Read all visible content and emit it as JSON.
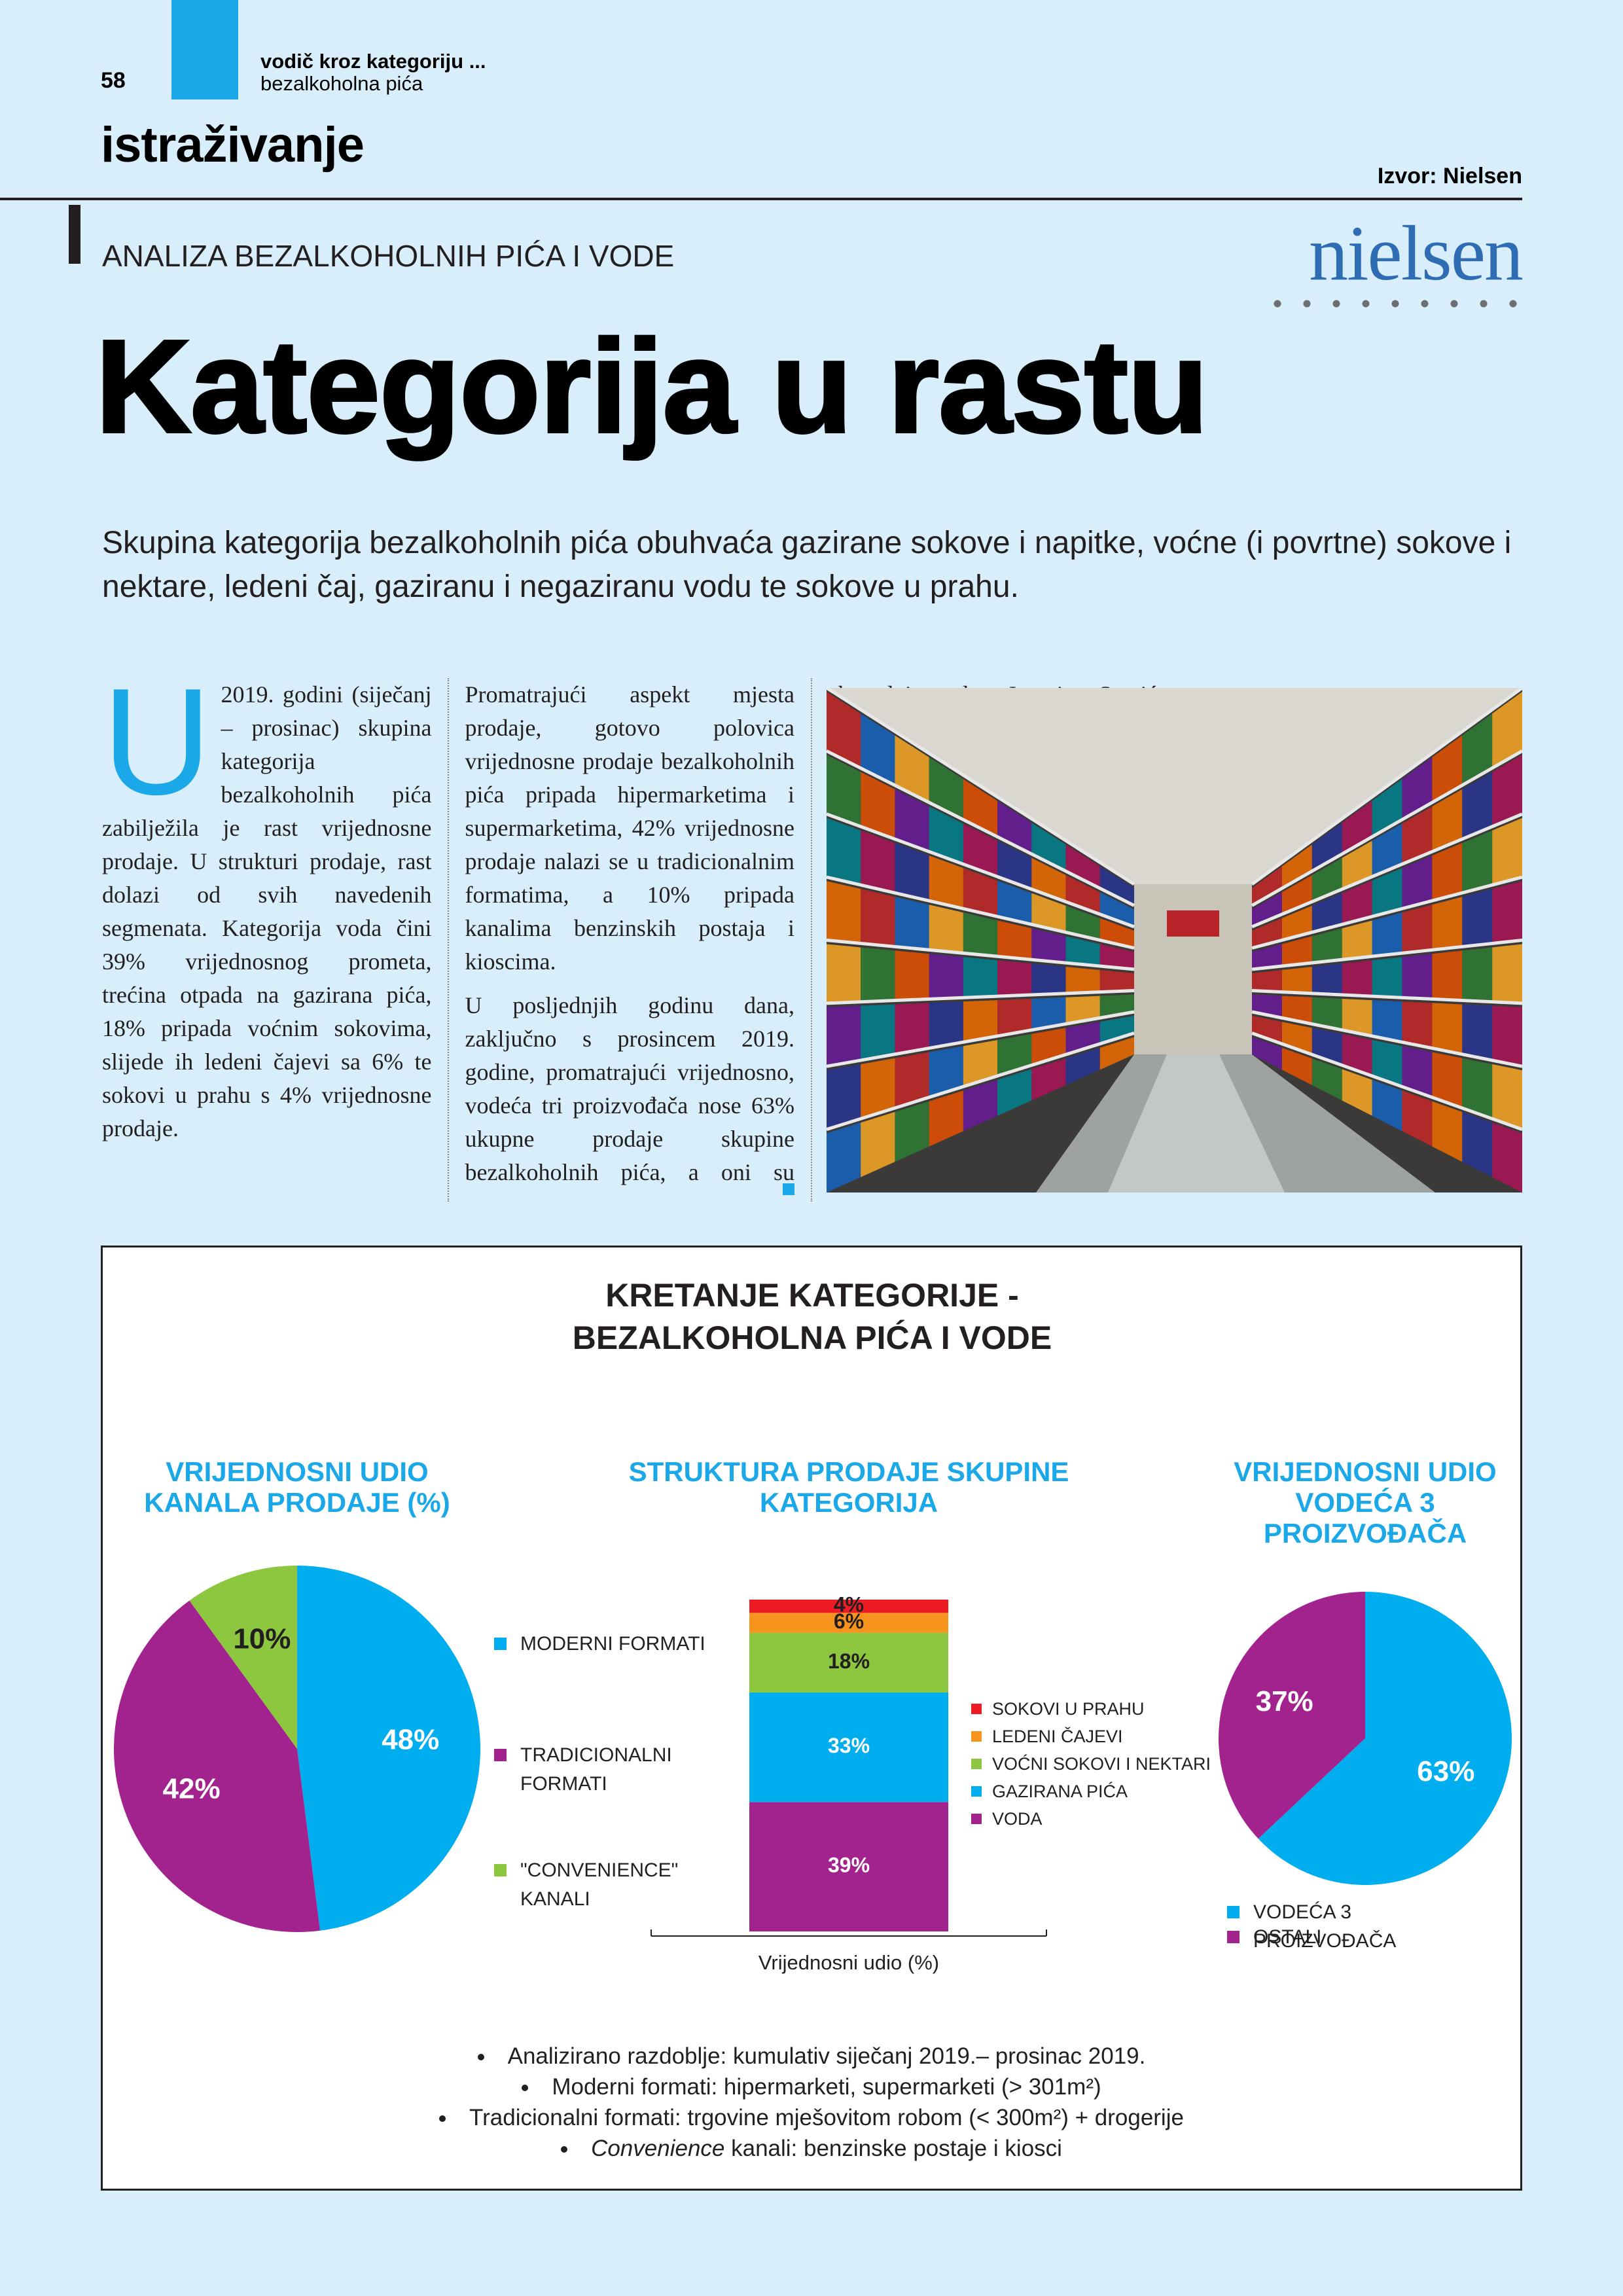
{
  "header": {
    "page_number": "58",
    "section_line1": "vodič kroz kategoriju ...",
    "section_line2": "bezalkoholna pića",
    "section": "istraživanje",
    "source": "Izvor: Nielsen",
    "logo": "nielsen"
  },
  "article": {
    "kicker": "ANALIZA BEZALKOHOLNIH PIĆA I VODE",
    "title": "Kategorija u rastu",
    "lead": "Skupina kategorija bezalkoholnih pića obuhvaća gazirane sokove i napitke, voćne (i povrtne) sokove i nektare, ledeni čaj, gaziranu i negaziranu vodu te sokove u prahu.",
    "drop_cap": "U",
    "paragraphs": [
      "2019. godini (siječanj – prosinac) skupina kategorija bezalkoholnih pića zabilježila je rast vrijednosne prodaje. U strukturi prodaje, rast dolazi od svih navedenih segmenata. Kategorija voda čini 39% vrijednosnog prometa, trećina otpada na gazirana pića, 18% pripada voćnim sokovima, slijede ih ledeni čajevi sa 6% te sokovi u prahu s 4% vrijednosne prodaje.",
      "Promatrajući aspekt mjesta prodaje, gotovo polovica vrijednosne prodaje bezalkoholnih pića pripada hipermarketima i supermarketima, 42% vrijednosne prodaje nalazi se u tradicionalnim formatima, a 10% pripada kanalima benzinskih postaja i kioscima.",
      "U posljednjih godinu dana, zaključno s prosincem 2019. godine, promatrajući vrijednosno, vodeća tri proizvođača nose 63% ukupne prodaje skupine bezalkoholnih pića, a oni su abecednim redom Jamnica, Stanić Beverages i The Coca-Cola Company."
    ]
  },
  "chart_panel": {
    "title_lines": [
      "KRETANJE KATEGORIJE -",
      "BEZALKOHOLNA PIĆA I VODE"
    ],
    "notes": [
      "Analizirano razdoblje: kumulativ siječanj 2019.– prosinac 2019.",
      "Moderni formati: hipermarketi, supermarketi (> 301m²)",
      "Tradicionalni formati: trgovine mješovitom robom (< 300m²) + drogerije",
      {
        "italic": "Convenience",
        "text": "kanali: benzinske postaje i kiosci"
      }
    ]
  },
  "chart_data": [
    {
      "type": "pie",
      "title_lines": [
        "VRIJEDNOSNI UDIO",
        "KANALA PRODAJE (%)"
      ],
      "labels": [
        "MODERNI FORMATI",
        "TRADICIONALNI FORMATI",
        "\"CONVENIENCE\" KANALI"
      ],
      "values": [
        48,
        42,
        10
      ],
      "value_labels": [
        "48%",
        "42%",
        "10%"
      ],
      "colors": [
        "#00aeef",
        "#a3238e",
        "#8dc63f"
      ],
      "label_colors": [
        "#ffffff",
        "#ffffff",
        "#231f20"
      ]
    },
    {
      "type": "stacked_bar",
      "title_lines": [
        "STRUKTURA PRODAJE SKUPINE",
        "KATEGORIJA"
      ],
      "xlabel": "Vrijednosni udio (%)",
      "series": [
        {
          "name": "VODA",
          "color": "#a3238e",
          "values": [
            39
          ],
          "value_labels": [
            "39%"
          ],
          "label_color": "#ffffff"
        },
        {
          "name": "GAZIRANA PIĆA",
          "color": "#00aeef",
          "values": [
            33
          ],
          "value_labels": [
            "33%"
          ],
          "label_color": "#ffffff"
        },
        {
          "name": "VOĆNI SOKOVI I NEKTARI",
          "color": "#8dc63f",
          "values": [
            18
          ],
          "value_labels": [
            "18%"
          ],
          "label_color": "#231f20"
        },
        {
          "name": "LEDENI ČAJEVI",
          "color": "#f7941d",
          "values": [
            6
          ],
          "value_labels": [
            "6%"
          ],
          "label_color": "#231f20"
        },
        {
          "name": "SOKOVI U PRAHU",
          "color": "#ed1c24",
          "values": [
            4
          ],
          "value_labels": [
            "4%"
          ],
          "label_color": "#231f20"
        }
      ]
    },
    {
      "type": "pie",
      "title_lines": [
        "VRIJEDNOSNI UDIO",
        "VODEĆA 3",
        "PROIZVOĐAČA"
      ],
      "labels": [
        "VODEĆA 3 PROIZVOĐAČA",
        "OSTALI"
      ],
      "values": [
        63,
        37
      ],
      "value_labels": [
        "63%",
        "37%"
      ],
      "colors": [
        "#00aeef",
        "#a3238e"
      ],
      "label_colors": [
        "#ffffff",
        "#ffffff"
      ]
    }
  ]
}
